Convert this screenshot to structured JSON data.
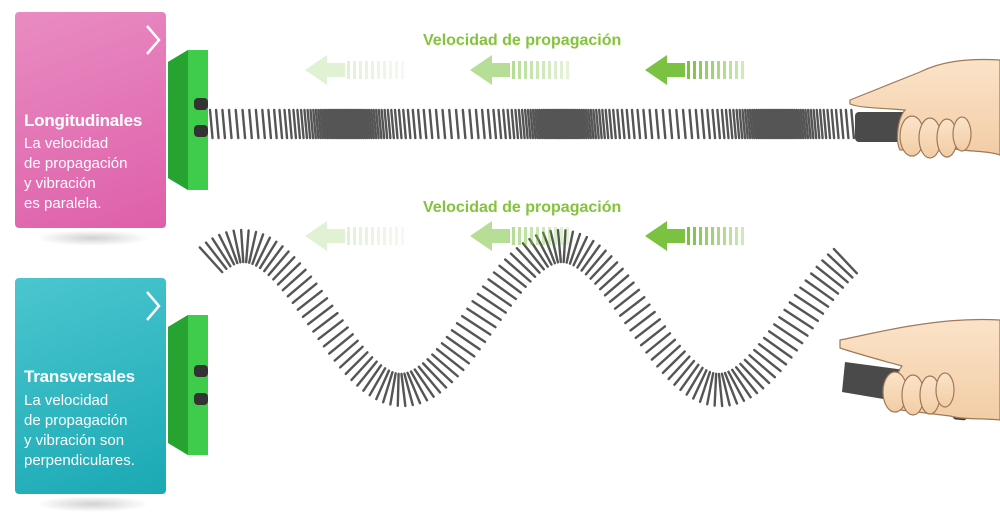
{
  "colors": {
    "longitudinal_card": "#de5fa9",
    "transversal_card": "#1aa9b4",
    "wall": "#33c240",
    "spring": "#555555",
    "arrow": "#7cc242",
    "label": "#84c33c"
  },
  "longitudinal": {
    "title": "Longitudinales",
    "text": "La velocidad\nde propagación\ny vibración\nes paralela.",
    "chevron_icon": "chevron-right-icon",
    "propagation_label": "Velocidad de propagación"
  },
  "transversal": {
    "title": "Transversales",
    "text": "La velocidad\nde propagación\ny vibración son\nperpendiculares.",
    "chevron_icon": "chevron-right-icon",
    "propagation_label": "Velocidad de propagación"
  }
}
